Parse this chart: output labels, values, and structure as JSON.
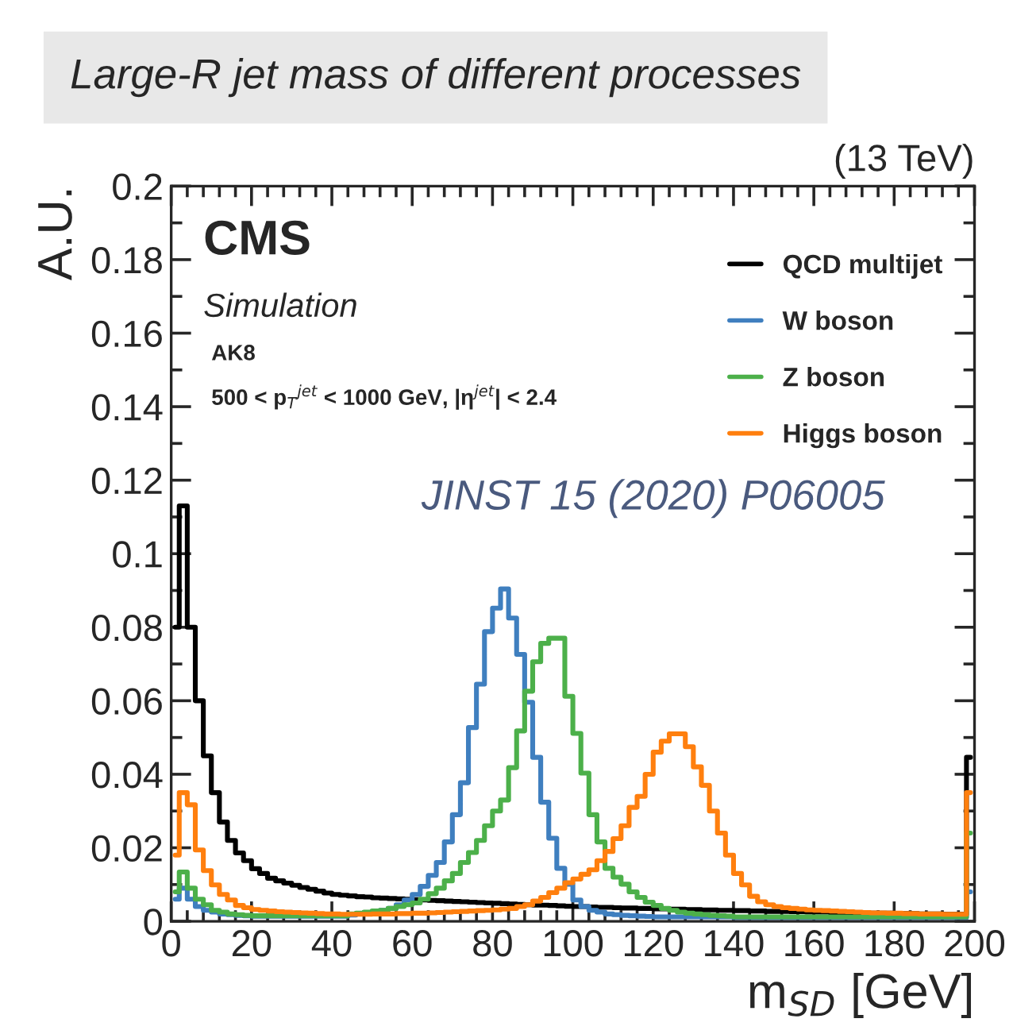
{
  "chart_data": {
    "type": "step",
    "title": "Large-R jet mass of different processes",
    "xlabel": "m$_{SD}$ [GeV]",
    "ylabel": "A.U.",
    "annotations": [
      "(13 TeV)",
      "CMS",
      "Simulation",
      "AK8",
      "500 < p$_{T}$$^{jet}$ < 1000 GeV, |η$^{jet}$| < 2.4",
      "JINST 15 (2020) P06005"
    ],
    "x": [
      1,
      3,
      5,
      7,
      9,
      11,
      13,
      15,
      17,
      19,
      21,
      23,
      25,
      27,
      29,
      31,
      33,
      35,
      37,
      39,
      41,
      43,
      45,
      47,
      49,
      51,
      53,
      55,
      57,
      59,
      61,
      63,
      65,
      67,
      69,
      71,
      73,
      75,
      77,
      79,
      81,
      83,
      85,
      87,
      89,
      91,
      93,
      95,
      97,
      99,
      101,
      103,
      105,
      107,
      109,
      111,
      113,
      115,
      117,
      119,
      121,
      123,
      125,
      127,
      129,
      131,
      133,
      135,
      137,
      139,
      141,
      143,
      145,
      147,
      149,
      151,
      153,
      155,
      157,
      159,
      161,
      163,
      165,
      167,
      169,
      171,
      173,
      175,
      177,
      179,
      181,
      183,
      185,
      187,
      189,
      191,
      193,
      195,
      197,
      199
    ],
    "series": [
      {
        "name": "QCD multijet",
        "color": "#000000",
        "values": [
          0.08,
          0.113,
          0.08,
          0.06,
          0.045,
          0.035,
          0.027,
          0.022,
          0.0186,
          0.0165,
          0.0143,
          0.013,
          0.0117,
          0.011,
          0.0104,
          0.0098,
          0.0092,
          0.0087,
          0.0082,
          0.0077,
          0.0073,
          0.0071,
          0.0069,
          0.0067,
          0.0066,
          0.0064,
          0.0063,
          0.0062,
          0.0061,
          0.006,
          0.0059,
          0.0058,
          0.0057,
          0.0056,
          0.0055,
          0.0054,
          0.0053,
          0.0052,
          0.0051,
          0.005,
          0.0049,
          0.0048,
          0.0047,
          0.0046,
          0.0045,
          0.0044,
          0.0044,
          0.0043,
          0.0042,
          0.0041,
          0.004,
          0.004,
          0.0039,
          0.0038,
          0.0038,
          0.0037,
          0.0036,
          0.0036,
          0.0035,
          0.0035,
          0.0034,
          0.0034,
          0.0033,
          0.0033,
          0.0032,
          0.0032,
          0.0031,
          0.0031,
          0.003,
          0.003,
          0.0029,
          0.0029,
          0.0028,
          0.0028,
          0.0027,
          0.0027,
          0.0027,
          0.0026,
          0.0026,
          0.0025,
          0.0025,
          0.0025,
          0.0024,
          0.0024,
          0.0023,
          0.0023,
          0.0023,
          0.0022,
          0.0022,
          0.0022,
          0.0021,
          0.0021,
          0.0021,
          0.002,
          0.002,
          0.002,
          0.0019,
          0.0019,
          0.0019,
          0.0446
        ]
      },
      {
        "name": "W boson",
        "color": "#3f7fbf",
        "values": [
          0.006,
          0.009,
          0.006,
          0.004,
          0.003,
          0.0025,
          0.002,
          0.0018,
          0.0016,
          0.0015,
          0.0014,
          0.0014,
          0.0014,
          0.0014,
          0.0014,
          0.0014,
          0.0014,
          0.0014,
          0.0014,
          0.0014,
          0.0014,
          0.0014,
          0.0017,
          0.002,
          0.0023,
          0.0026,
          0.003,
          0.0035,
          0.0045,
          0.0058,
          0.0073,
          0.0095,
          0.0125,
          0.016,
          0.0216,
          0.029,
          0.0377,
          0.0527,
          0.0645,
          0.0788,
          0.0852,
          0.0904,
          0.0825,
          0.0726,
          0.0596,
          0.0446,
          0.0324,
          0.0226,
          0.0144,
          0.0101,
          0.0058,
          0.004,
          0.003,
          0.0025,
          0.002,
          0.0018,
          0.0016,
          0.0015,
          0.0014,
          0.0013,
          0.0012,
          0.0012,
          0.0012,
          0.0012,
          0.0012,
          0.0012,
          0.0012,
          0.0012,
          0.0012,
          0.0012,
          0.001,
          0.001,
          0.001,
          0.001,
          0.001,
          0.001,
          0.001,
          0.001,
          0.001,
          0.001,
          0.001,
          0.001,
          0.001,
          0.001,
          0.001,
          0.001,
          0.001,
          0.001,
          0.001,
          0.001,
          0.001,
          0.001,
          0.001,
          0.001,
          0.001,
          0.001,
          0.001,
          0.001,
          0.001,
          0.008
        ]
      },
      {
        "name": "Z boson",
        "color": "#4cb04a",
        "values": [
          0.008,
          0.0134,
          0.009,
          0.006,
          0.0045,
          0.003,
          0.0025,
          0.002,
          0.0018,
          0.0016,
          0.0015,
          0.0015,
          0.0015,
          0.0015,
          0.0015,
          0.0015,
          0.0015,
          0.0015,
          0.0015,
          0.0015,
          0.0015,
          0.0015,
          0.002,
          0.0022,
          0.0025,
          0.0028,
          0.003,
          0.0035,
          0.004,
          0.0045,
          0.005,
          0.006,
          0.0075,
          0.009,
          0.011,
          0.013,
          0.016,
          0.0187,
          0.022,
          0.026,
          0.03,
          0.033,
          0.0418,
          0.0518,
          0.0626,
          0.0706,
          0.0756,
          0.077,
          0.077,
          0.0612,
          0.0511,
          0.0403,
          0.029,
          0.0216,
          0.0144,
          0.012,
          0.0101,
          0.008,
          0.0065,
          0.0052,
          0.0043,
          0.0035,
          0.003,
          0.0025,
          0.0022,
          0.002,
          0.0018,
          0.0016,
          0.0015,
          0.0014,
          0.0012,
          0.0012,
          0.0012,
          0.0012,
          0.0012,
          0.0012,
          0.0012,
          0.0012,
          0.0012,
          0.0012,
          0.0012,
          0.0012,
          0.0012,
          0.0012,
          0.0012,
          0.0012,
          0.0012,
          0.0012,
          0.0012,
          0.0012,
          0.0012,
          0.0012,
          0.0012,
          0.0012,
          0.0012,
          0.0012,
          0.0012,
          0.0012,
          0.0012,
          0.024
        ]
      },
      {
        "name": "Higgs boson",
        "color": "#ff7f0e",
        "values": [
          0.018,
          0.035,
          0.0317,
          0.0194,
          0.0138,
          0.0099,
          0.0073,
          0.0058,
          0.0043,
          0.0037,
          0.0032,
          0.003,
          0.0028,
          0.0026,
          0.0025,
          0.0024,
          0.0023,
          0.0022,
          0.0021,
          0.002,
          0.002,
          0.0019,
          0.0019,
          0.0019,
          0.0019,
          0.002,
          0.002,
          0.002,
          0.0021,
          0.0021,
          0.0022,
          0.0022,
          0.0023,
          0.0024,
          0.0025,
          0.0026,
          0.0027,
          0.0028,
          0.0029,
          0.003,
          0.0031,
          0.0033,
          0.0035,
          0.004,
          0.0045,
          0.0055,
          0.0065,
          0.0078,
          0.009,
          0.0105,
          0.0115,
          0.0128,
          0.014,
          0.0165,
          0.019,
          0.0225,
          0.026,
          0.031,
          0.034,
          0.04,
          0.046,
          0.049,
          0.051,
          0.051,
          0.0475,
          0.042,
          0.037,
          0.03,
          0.024,
          0.018,
          0.013,
          0.0099,
          0.0068,
          0.0053,
          0.0045,
          0.004,
          0.0037,
          0.0035,
          0.0033,
          0.0031,
          0.003,
          0.0029,
          0.0028,
          0.0027,
          0.0026,
          0.0025,
          0.0024,
          0.0023,
          0.0023,
          0.0022,
          0.0022,
          0.0021,
          0.0021,
          0.002,
          0.002,
          0.002,
          0.0019,
          0.0019,
          0.0019,
          0.035
        ]
      }
    ],
    "xlim": [
      0,
      200
    ],
    "ylim": [
      0,
      0.2
    ],
    "xticks": [
      0,
      20,
      40,
      60,
      80,
      100,
      120,
      140,
      160,
      180,
      200
    ],
    "yticks": [
      0,
      0.02,
      0.04,
      0.06,
      0.08,
      0.1,
      0.12,
      0.14,
      0.16,
      0.18,
      0.2
    ],
    "legend": "top right",
    "grid": false
  }
}
